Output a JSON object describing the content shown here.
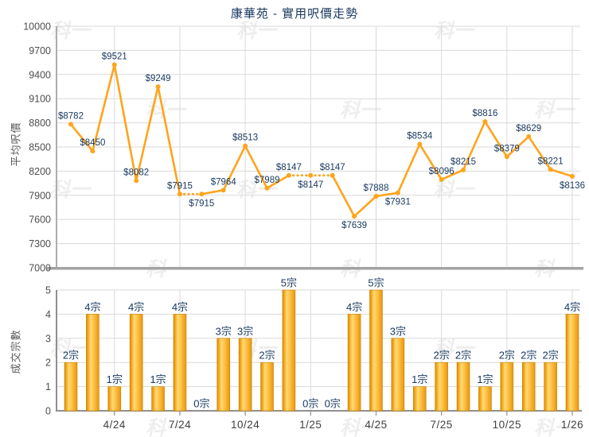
{
  "title": "康華苑 - 實用呎價走勢",
  "watermark_text": "科一",
  "colors": {
    "line": "#FFA41D",
    "data_label": "#17375E",
    "bar_dark": "#DB8C05",
    "bar_mid": "#F2A313",
    "bar_light": "#FFD976",
    "grid": "#DADADA",
    "axis_light": "#ADADAD",
    "axis_dark": "#8F8F8F",
    "tick_text": "#4D4D4D",
    "x_tick_text": "#404040"
  },
  "chart_data": [
    {
      "type": "line",
      "name": "實用呎價",
      "ylabel": "平均呎價",
      "ylim": [
        7000,
        10000
      ],
      "y_ticks": [
        10000,
        9700,
        9400,
        9100,
        8800,
        8500,
        8200,
        7900,
        7600,
        7300,
        7000
      ],
      "n_points": 24,
      "x_tick_labels": [
        "4/24",
        "7/24",
        "10/24",
        "1/25",
        "4/25",
        "7/25",
        "10/25",
        "1/26"
      ],
      "x_tick_months": [
        3,
        6,
        9,
        12,
        15,
        18,
        21,
        24
      ],
      "label_prefix": "$",
      "values": [
        8782,
        8450,
        9521,
        8082,
        9249,
        7915,
        7915,
        7964,
        8513,
        7989,
        8147,
        8147,
        8147,
        7639,
        7888,
        7931,
        8534,
        8096,
        8215,
        8816,
        8379,
        8629,
        8221,
        8136
      ],
      "point_labels": [
        "$8782",
        "$8450",
        "$9521",
        "$8082",
        "$9249",
        "$7915",
        "$7915",
        "$7964",
        "$8513",
        "$7989",
        "$8147",
        "$8147",
        "$8147",
        "$7639",
        "$7888",
        "$7931",
        "$8534",
        "$8096",
        "$8215",
        "$8816",
        "$8379",
        "$8629",
        "$8221",
        "$8136"
      ],
      "label_below_points": [
        7,
        12,
        14,
        16,
        24
      ],
      "dotted_segments": [
        [
          6,
          7
        ],
        [
          11,
          12
        ],
        [
          12,
          13
        ]
      ],
      "grid": true,
      "legend": "none"
    },
    {
      "type": "bar",
      "name": "成交宗數",
      "ylabel": "成交宗數",
      "ylim": [
        0,
        5
      ],
      "y_ticks": [
        5,
        4,
        3,
        2,
        1,
        0
      ],
      "label_suffix": "宗",
      "values": [
        2,
        4,
        1,
        4,
        1,
        4,
        0,
        3,
        3,
        2,
        5,
        0,
        0,
        4,
        5,
        3,
        1,
        2,
        2,
        1,
        2,
        2,
        2,
        4
      ],
      "bar_labels": [
        "2宗",
        "4宗",
        "1宗",
        "4宗",
        "1宗",
        "4宗",
        "0宗",
        "3宗",
        "3宗",
        "2宗",
        "5宗",
        "0宗",
        "0宗",
        "4宗",
        "5宗",
        "3宗",
        "1宗",
        "2宗",
        "2宗",
        "1宗",
        "2宗",
        "2宗",
        "2宗",
        "4宗"
      ],
      "x_tick_labels": [
        "4/24",
        "7/24",
        "10/24",
        "1/25",
        "4/25",
        "7/25",
        "10/25",
        "1/26"
      ],
      "x_tick_months": [
        3,
        6,
        9,
        12,
        15,
        18,
        21,
        24
      ],
      "grid": true,
      "legend": "none"
    }
  ]
}
